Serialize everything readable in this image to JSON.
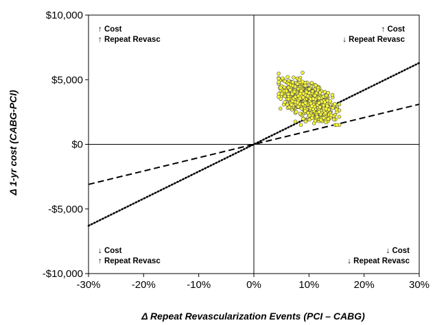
{
  "chart_data": {
    "type": "scatter",
    "title": "",
    "xlabel": "Δ Repeat Revascularization Events (PCI – CABG)",
    "ylabel": "Δ 1-yr cost (CABG-PCI)",
    "xlim": [
      -30,
      30
    ],
    "ylim": [
      -10000,
      10000
    ],
    "x_ticks": [
      -30,
      -20,
      -10,
      0,
      10,
      20,
      30
    ],
    "x_tick_labels": [
      "-30%",
      "-20%",
      "-10%",
      "0%",
      "10%",
      "20%",
      "30%"
    ],
    "y_ticks": [
      -10000,
      -5000,
      0,
      5000,
      10000
    ],
    "y_tick_labels": [
      "-$10,000",
      "-$5,000",
      "$0",
      "$5,000",
      "$10,000"
    ],
    "grid": false,
    "legend": "none",
    "reference_lines": [
      {
        "style": "dashed",
        "slope_per_pct": 103.3
      },
      {
        "style": "dotted",
        "slope_per_pct": 210
      }
    ],
    "quadrant_labels": {
      "top_left": [
        "↑ Cost",
        "↑ Repeat Revasc"
      ],
      "top_right": [
        "↑ Cost",
        "↓ Repeat Revasc"
      ],
      "bottom_left": [
        "↓ Cost",
        "↑ Repeat Revasc"
      ],
      "bottom_right": [
        "↓ Cost",
        "↓ Repeat Revasc"
      ]
    },
    "point_cloud": {
      "n": 1000,
      "mean": [
        9.8,
        3400
      ],
      "sd": [
        2.2,
        720
      ],
      "correlation": -0.55,
      "x_range": [
        4.5,
        15.5
      ],
      "y_range": [
        1500,
        5800
      ],
      "marker_color": "#ffff33",
      "marker_edge": "#555555"
    }
  },
  "colors": {
    "background": "#ffffff",
    "axes": "#000000"
  }
}
